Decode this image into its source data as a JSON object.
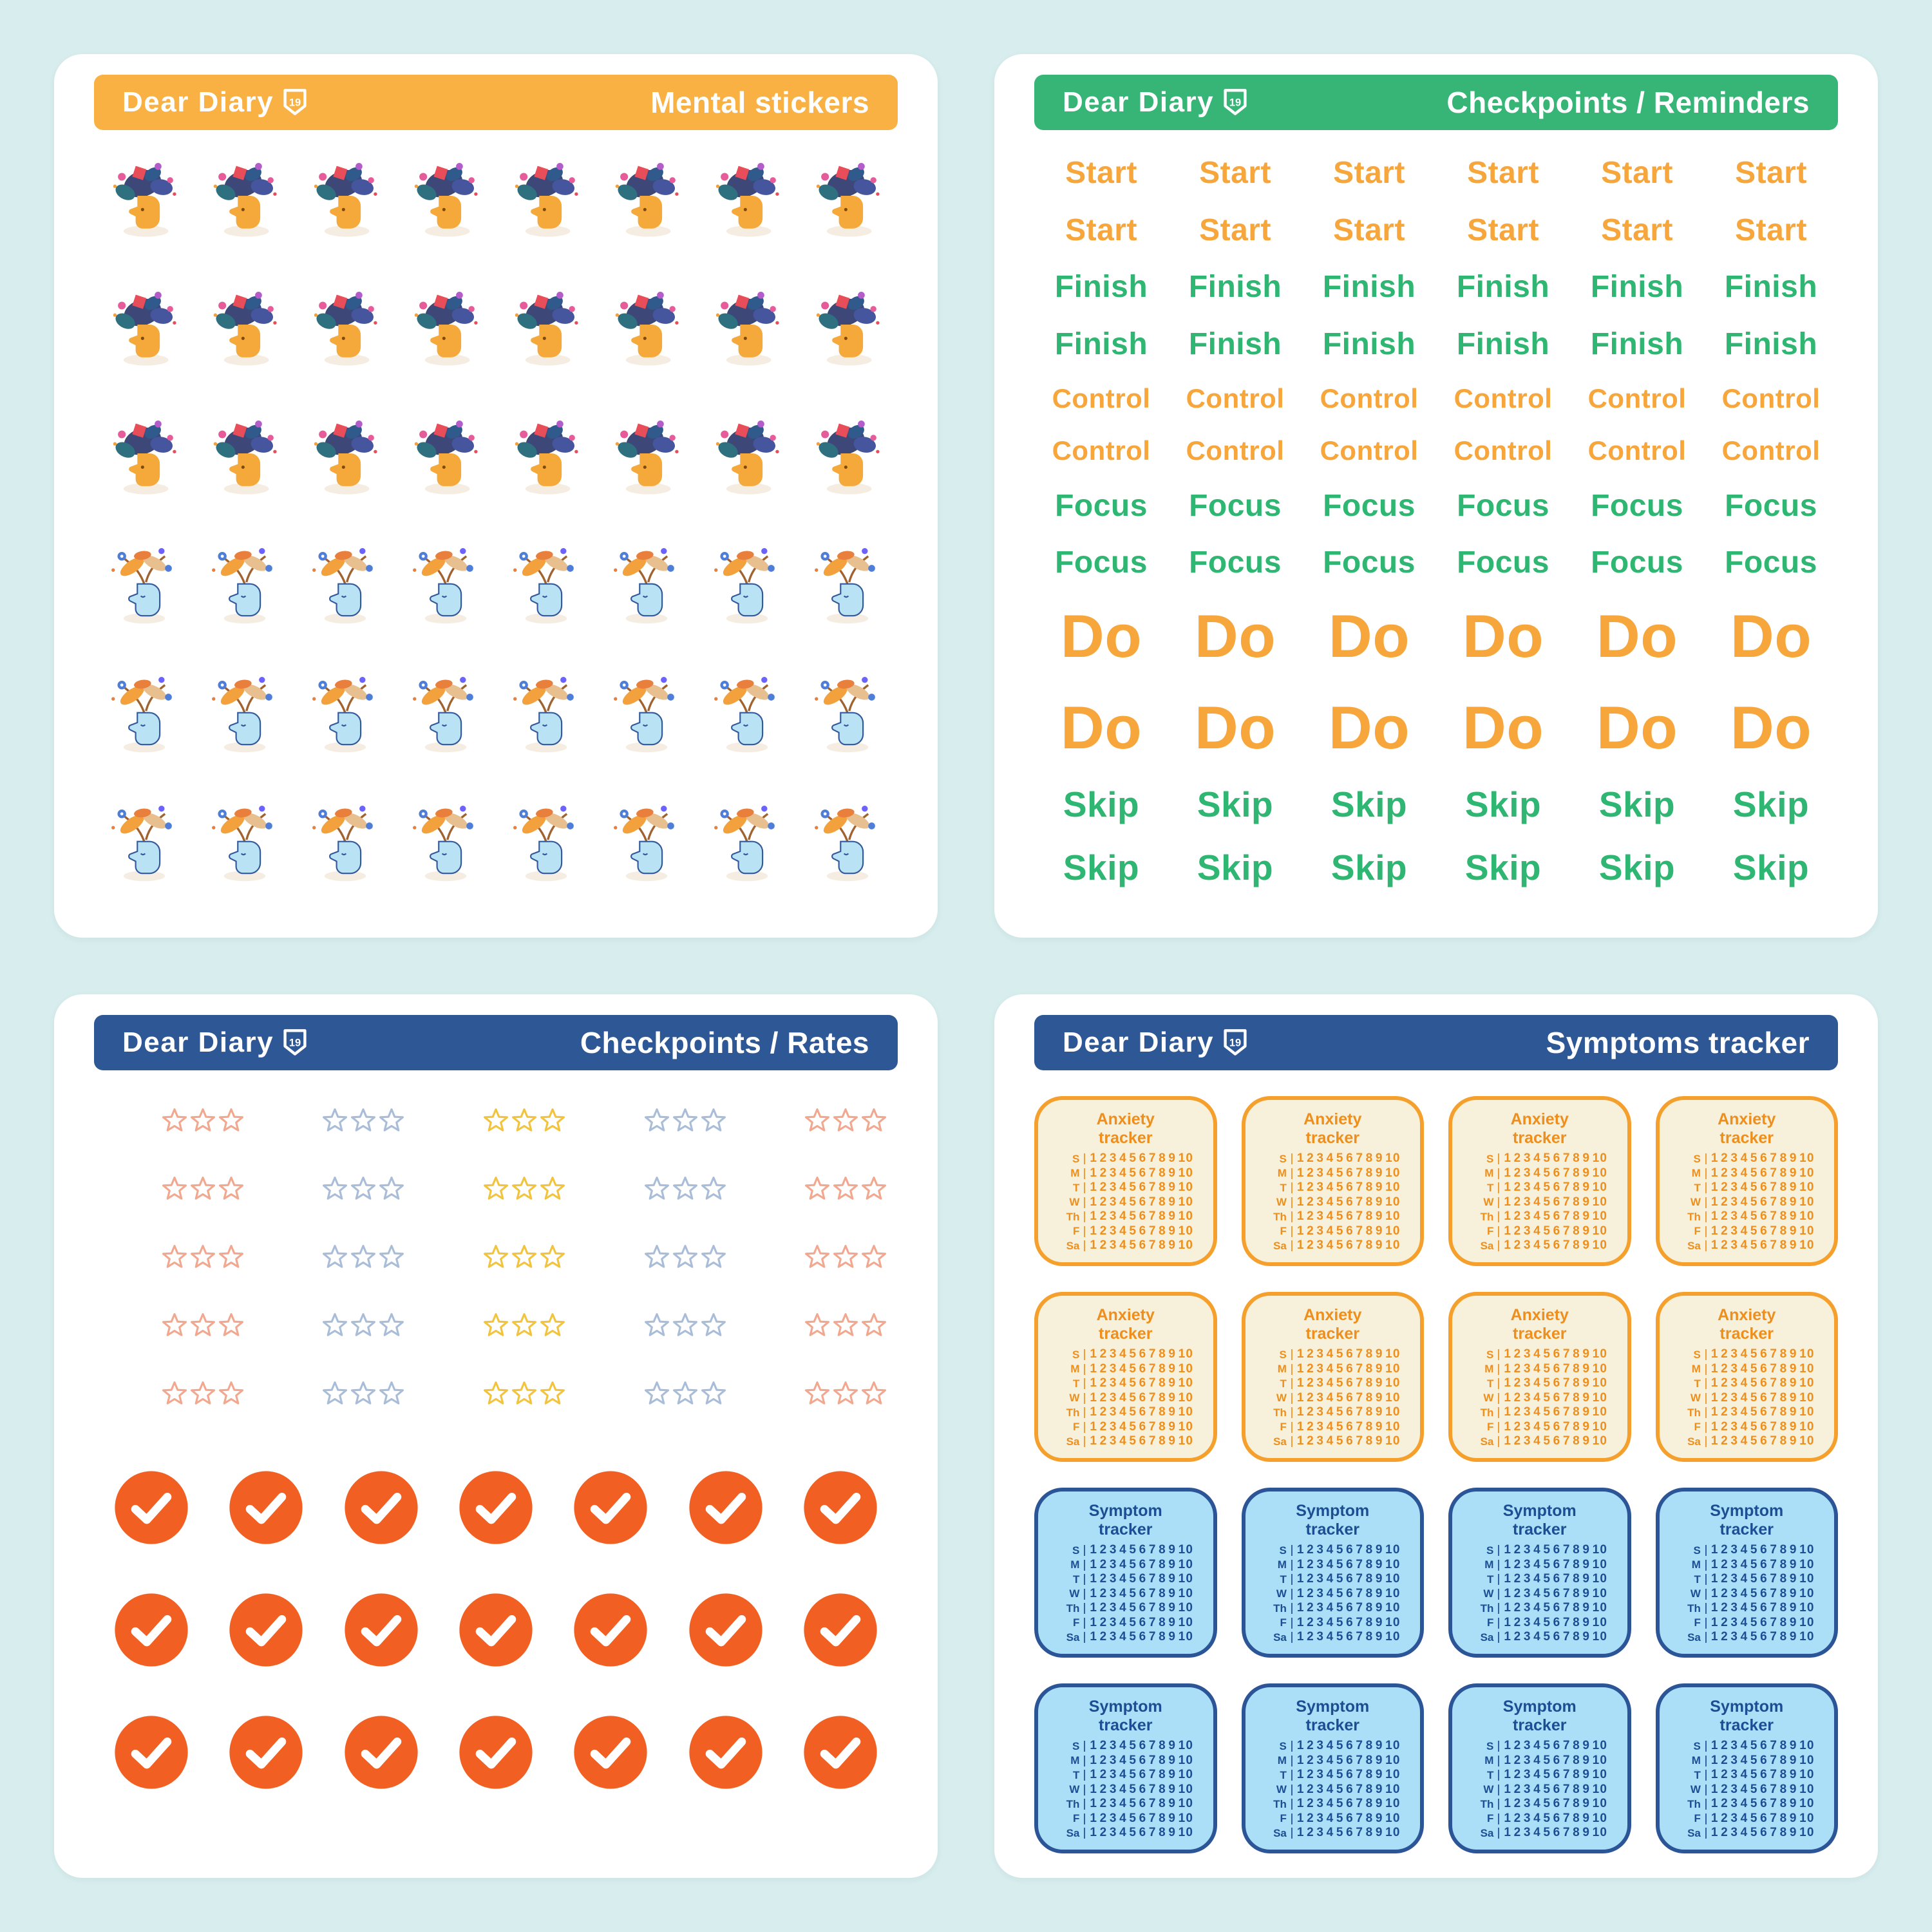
{
  "page": {
    "background": "#d8eded"
  },
  "brand": {
    "name": "Dear Diary",
    "badge": "19"
  },
  "sheets": {
    "mental": {
      "title": "Mental stickers",
      "header_color": "#f9b143",
      "grid": {
        "rows": 6,
        "cols": 8
      },
      "row_variants": [
        "flower-head-dark",
        "flower-head-dark",
        "flower-head-dark",
        "leaf-head-light",
        "leaf-head-light",
        "leaf-head-light"
      ]
    },
    "reminders": {
      "title": "Checkpoints / Reminders",
      "header_color": "#36b577",
      "cols": 6,
      "colors": {
        "orange": "#f7a63c",
        "green": "#2fb673"
      },
      "rows": [
        {
          "label": "Start",
          "color": "orange",
          "size": "md"
        },
        {
          "label": "Start",
          "color": "orange",
          "size": "md"
        },
        {
          "label": "Finish",
          "color": "green",
          "size": "md"
        },
        {
          "label": "Finish",
          "color": "green",
          "size": "md"
        },
        {
          "label": "Control",
          "color": "orange",
          "size": "sm"
        },
        {
          "label": "Control",
          "color": "orange",
          "size": "sm"
        },
        {
          "label": "Focus",
          "color": "green",
          "size": "md"
        },
        {
          "label": "Focus",
          "color": "green",
          "size": "md"
        },
        {
          "label": "Do",
          "color": "orange",
          "size": "xl"
        },
        {
          "label": "Do",
          "color": "orange",
          "size": "xl"
        },
        {
          "label": "Skip",
          "color": "green",
          "size": "lg"
        },
        {
          "label": "Skip",
          "color": "green",
          "size": "lg"
        }
      ]
    },
    "rates": {
      "title": "Checkpoints / Rates",
      "header_color": "#2e5796",
      "stars": {
        "rows": 5,
        "per_group": 5,
        "column_colors": [
          "#f2a78f",
          "#a9bdd9",
          "#f2c33d",
          "#a9bdd9",
          "#f2a78f"
        ]
      },
      "checks": {
        "rows": 3,
        "cols": 7,
        "color": "#f15f22"
      }
    },
    "symptoms": {
      "title": "Symptoms tracker",
      "header_color": "#2e5796",
      "cols": 4,
      "row_types": [
        "anxiety",
        "anxiety",
        "symptom",
        "symptom"
      ],
      "types": {
        "anxiety": {
          "title_line1": "Anxiety",
          "title_line2": "tracker",
          "border": "#f5a02c",
          "background": "#f7f0da",
          "text": "#ee8f1d"
        },
        "symptom": {
          "title_line1": "Symptom",
          "title_line2": "tracker",
          "border": "#2b5597",
          "background": "#abdff7",
          "text": "#1d4e94"
        }
      },
      "days": [
        "S",
        "M",
        "T",
        "W",
        "Th",
        "F",
        "Sa"
      ],
      "scale": "1 2 3 4 5 6 7 8 9 10"
    }
  }
}
